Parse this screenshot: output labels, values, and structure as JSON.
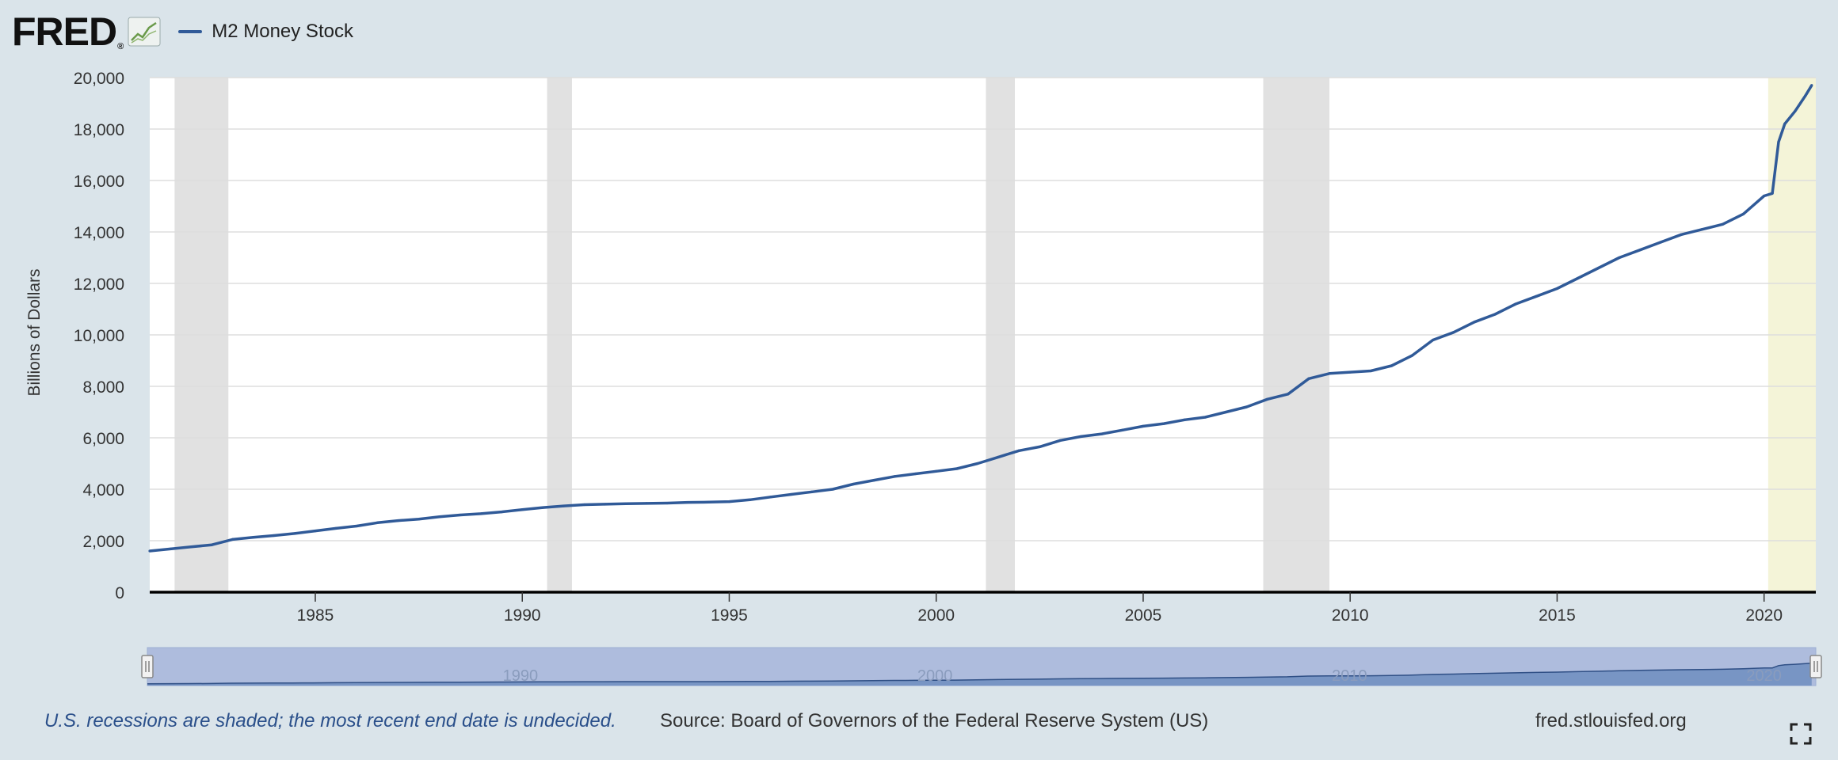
{
  "header": {
    "logo_text": "FRED",
    "logo_mark": "®",
    "logo_icon": "line-chart-icon",
    "legend_label": "M2 Money Stock"
  },
  "footer": {
    "recession_note": "U.S. recessions are shaded; the most recent end date is undecided.",
    "source": "Source: Board of Governors of the Federal Reserve System (US)",
    "site": "fred.stlouisfed.org",
    "fullscreen_icon": "fullscreen-icon"
  },
  "colors": {
    "page_bg": "#dae4ea",
    "plot_bg": "#ffffff",
    "series": "#305a98",
    "recession": "#e1e1e1",
    "recession_undecided": "#f4f4d8",
    "grid": "#dddddd",
    "navigator_bg": "#aebcdd",
    "navigator_fill": "#6f8ec0"
  },
  "chart_data": {
    "type": "line",
    "title": "",
    "xlabel": "",
    "ylabel": "Billions of Dollars",
    "xlim": [
      1981.0,
      2021.25
    ],
    "ylim": [
      0,
      20000
    ],
    "x_ticks": [
      1985,
      1990,
      1995,
      2000,
      2005,
      2010,
      2015,
      2020
    ],
    "x_tick_labels": [
      "1985",
      "1990",
      "1995",
      "2000",
      "2005",
      "2010",
      "2015",
      "2020"
    ],
    "y_ticks": [
      0,
      2000,
      4000,
      6000,
      8000,
      10000,
      12000,
      14000,
      16000,
      18000,
      20000
    ],
    "y_tick_labels": [
      "0",
      "2,000",
      "4,000",
      "6,000",
      "8,000",
      "10,000",
      "12,000",
      "14,000",
      "16,000",
      "18,000",
      "20,000"
    ],
    "grid": true,
    "legend": "top-left",
    "recessions": [
      {
        "start": 1981.6,
        "end": 1982.9
      },
      {
        "start": 1990.6,
        "end": 1991.2
      },
      {
        "start": 2001.2,
        "end": 2001.9
      },
      {
        "start": 2007.9,
        "end": 2009.5
      },
      {
        "start": 2020.1,
        "end": 2021.25,
        "undecided": true
      }
    ],
    "series": [
      {
        "name": "M2 Money Stock",
        "x": [
          1981.0,
          1981.5,
          1982.0,
          1982.5,
          1983.0,
          1983.5,
          1984.0,
          1984.5,
          1985.0,
          1985.5,
          1986.0,
          1986.5,
          1987.0,
          1987.5,
          1988.0,
          1988.5,
          1989.0,
          1989.5,
          1990.0,
          1990.5,
          1991.0,
          1991.5,
          1992.0,
          1992.5,
          1993.0,
          1993.5,
          1994.0,
          1994.5,
          1995.0,
          1995.5,
          1996.0,
          1996.5,
          1997.0,
          1997.5,
          1998.0,
          1998.5,
          1999.0,
          1999.5,
          2000.0,
          2000.5,
          2001.0,
          2001.5,
          2002.0,
          2002.5,
          2003.0,
          2003.5,
          2004.0,
          2004.5,
          2005.0,
          2005.5,
          2006.0,
          2006.5,
          2007.0,
          2007.5,
          2008.0,
          2008.5,
          2009.0,
          2009.5,
          2010.0,
          2010.5,
          2011.0,
          2011.5,
          2012.0,
          2012.5,
          2013.0,
          2013.5,
          2014.0,
          2014.5,
          2015.0,
          2015.5,
          2016.0,
          2016.5,
          2017.0,
          2017.5,
          2018.0,
          2018.5,
          2019.0,
          2019.5,
          2020.0,
          2020.2,
          2020.35,
          2020.5,
          2020.75,
          2021.0,
          2021.15
        ],
        "values": [
          1600,
          1680,
          1760,
          1840,
          2050,
          2130,
          2200,
          2280,
          2380,
          2480,
          2570,
          2700,
          2780,
          2840,
          2930,
          3000,
          3050,
          3120,
          3210,
          3290,
          3350,
          3400,
          3420,
          3440,
          3450,
          3460,
          3490,
          3500,
          3520,
          3590,
          3700,
          3800,
          3900,
          4000,
          4200,
          4350,
          4500,
          4600,
          4700,
          4800,
          5000,
          5250,
          5500,
          5650,
          5900,
          6050,
          6150,
          6300,
          6450,
          6550,
          6700,
          6800,
          7000,
          7200,
          7500,
          7700,
          8300,
          8500,
          8550,
          8600,
          8800,
          9200,
          9800,
          10100,
          10500,
          10800,
          11200,
          11500,
          11800,
          12200,
          12600,
          13000,
          13300,
          13600,
          13900,
          14100,
          14300,
          14700,
          15400,
          15500,
          17500,
          18200,
          18700,
          19300,
          19700
        ]
      }
    ]
  },
  "navigator": {
    "labels": [
      "1990",
      "2000",
      "2010",
      "2020"
    ],
    "label_years": [
      1990,
      2000,
      2010,
      2020
    ],
    "handle_icon": "navigator-handle-icon"
  }
}
